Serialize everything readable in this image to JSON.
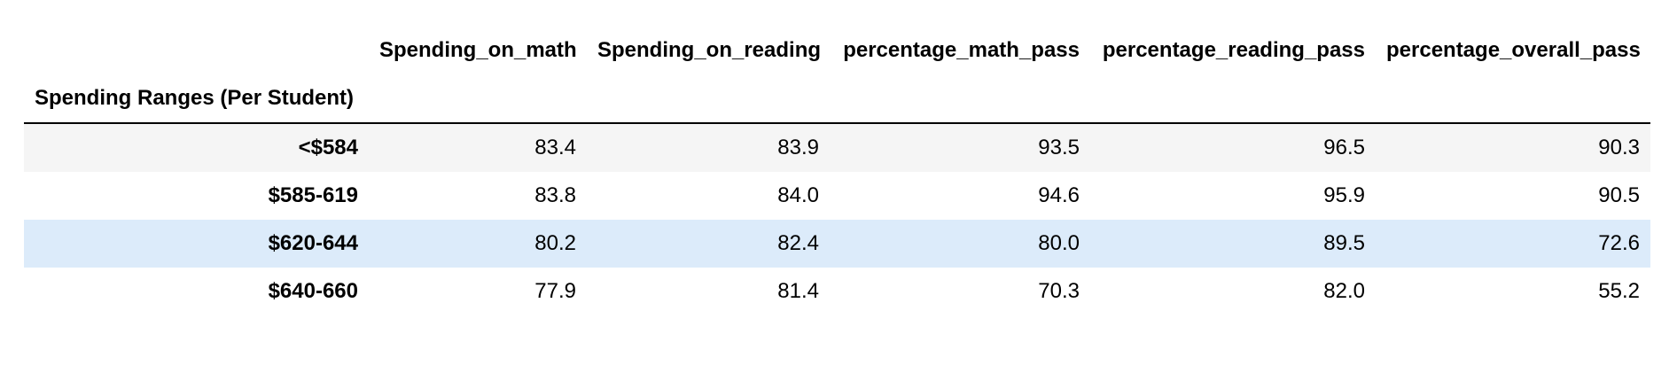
{
  "table": {
    "columns": [
      "Spending_on_math",
      "Spending_on_reading",
      "percentage_math_pass",
      "percentage_reading_pass",
      "percentage_overall_pass"
    ],
    "index_name": "Spending Ranges (Per Student)",
    "rows": [
      {
        "index": "<$584",
        "values": [
          "83.4",
          "83.9",
          "93.5",
          "96.5",
          "90.3"
        ]
      },
      {
        "index": "$585-619",
        "values": [
          "83.8",
          "84.0",
          "94.6",
          "95.9",
          "90.5"
        ]
      },
      {
        "index": "$620-644",
        "values": [
          "80.2",
          "82.4",
          "80.0",
          "89.5",
          "72.6"
        ]
      },
      {
        "index": "$640-660",
        "values": [
          "77.9",
          "81.4",
          "70.3",
          "82.0",
          "55.2"
        ]
      }
    ]
  },
  "colors": {
    "stripe_row": "#f5f5f5",
    "hover_row": "#dcebfa",
    "header_rule": "#000000"
  }
}
